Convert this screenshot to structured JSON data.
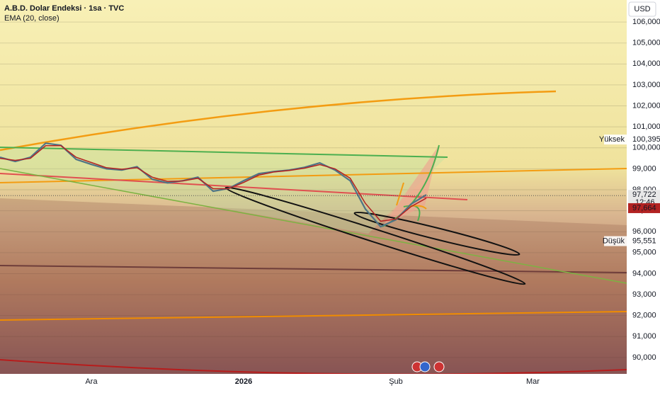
{
  "chart_data": {
    "type": "line",
    "currency": "USD",
    "categories": [
      null,
      null,
      null,
      null,
      null,
      null,
      "Ara",
      null,
      null,
      null,
      null,
      null,
      null,
      null,
      null,
      null,
      "2026",
      null,
      null,
      null,
      null,
      null,
      null,
      null,
      null,
      null,
      "Şub",
      null,
      null,
      null,
      null,
      null,
      null,
      null,
      null,
      "Mar",
      null,
      null,
      null,
      null,
      null,
      null
    ],
    "series": [
      {
        "name": "A.B.D. Dolar Endeksi · 1sa · TVC",
        "color": "#4f7486",
        "values": [
          99.55,
          99.35,
          99.55,
          100.22,
          100.12,
          99.45,
          99.21,
          99.0,
          98.94,
          99.1,
          98.5,
          98.33,
          98.43,
          98.6,
          97.93,
          98.06,
          98.43,
          98.77,
          98.87,
          98.94,
          99.07,
          99.28,
          98.94,
          98.43,
          97.08,
          96.24,
          96.57,
          97.32,
          97.76,
          null,
          null,
          null,
          null,
          null,
          null,
          null,
          null,
          null,
          null,
          null,
          null,
          null
        ]
      },
      {
        "name": "EMA (20, close)",
        "color": "#b22222",
        "values": [
          99.5,
          99.4,
          99.5,
          100.1,
          100.1,
          99.55,
          99.3,
          99.05,
          98.98,
          99.05,
          98.6,
          98.4,
          98.42,
          98.55,
          98.05,
          98.05,
          98.35,
          98.7,
          98.85,
          98.92,
          99.03,
          99.2,
          99.0,
          98.55,
          97.35,
          96.5,
          96.6,
          97.2,
          97.6,
          null,
          null,
          null,
          null,
          null,
          null,
          null,
          null,
          null,
          null,
          null,
          null,
          null
        ]
      }
    ],
    "ylim": [
      89.22,
      107.05
    ],
    "yticks": [
      {
        "value": 90,
        "label": "90,000"
      },
      {
        "value": 91,
        "label": "91,000"
      },
      {
        "value": 92,
        "label": "92,000"
      },
      {
        "value": 93,
        "label": "93,000"
      },
      {
        "value": 94,
        "label": "94,000"
      },
      {
        "value": 95,
        "label": "95,000"
      },
      {
        "value": 96,
        "label": "96,000"
      },
      {
        "value": 97,
        "label": "97,000"
      },
      {
        "value": 98,
        "label": "98,000"
      },
      {
        "value": 99,
        "label": "99,000"
      },
      {
        "value": 100,
        "label": "100,000"
      },
      {
        "value": 101,
        "label": "101,000"
      },
      {
        "value": 102,
        "label": "102,000"
      },
      {
        "value": 103,
        "label": "103,000"
      },
      {
        "value": 104,
        "label": "104,000"
      },
      {
        "value": 105,
        "label": "105,000"
      },
      {
        "value": 106,
        "label": "106,000"
      }
    ],
    "grid": true,
    "price_labels": [
      {
        "name": "Yüksek",
        "value": 100.395,
        "label": "100,395"
      },
      {
        "name": "Düşük",
        "value": 95.551,
        "label": "95,551"
      }
    ],
    "last_price": {
      "value": 97.722,
      "label": "97,722",
      "countdown": "12:46"
    },
    "ema_price": {
      "value": 97.664,
      "label": "97,664"
    }
  }
}
